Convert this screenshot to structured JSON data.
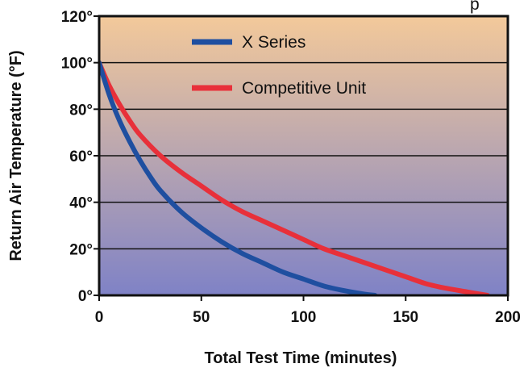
{
  "chart_data": {
    "type": "line",
    "title_fragment": "p",
    "xlabel": "Total Test Time (minutes)",
    "ylabel": "Return Air Temperature (°F)",
    "xlim": [
      0,
      200
    ],
    "ylim": [
      0,
      120
    ],
    "x_ticks": [
      0,
      50,
      100,
      150,
      200
    ],
    "x_tick_labels": [
      "0",
      "50",
      "100",
      "150",
      "200"
    ],
    "y_ticks": [
      0,
      20,
      40,
      60,
      80,
      100,
      120
    ],
    "y_tick_labels": [
      "0°",
      "20°",
      "40°",
      "60°",
      "80°",
      "100°",
      "120°"
    ],
    "grid": "horizontal",
    "legend_position": "top-center",
    "series": [
      {
        "name": "X Series",
        "color": "#1f4fa0",
        "x": [
          0,
          5,
          10,
          15,
          20,
          25,
          30,
          40,
          50,
          60,
          70,
          80,
          90,
          100,
          110,
          120,
          130,
          135
        ],
        "y": [
          100,
          86,
          75,
          66,
          58,
          51,
          45,
          36,
          29,
          23,
          18,
          14,
          10,
          7,
          4,
          2,
          0.5,
          0
        ]
      },
      {
        "name": "Competitive Unit",
        "color": "#e8303a",
        "x": [
          0,
          5,
          10,
          15,
          20,
          30,
          40,
          50,
          60,
          70,
          80,
          90,
          100,
          110,
          120,
          130,
          140,
          150,
          160,
          170,
          180,
          190
        ],
        "y": [
          100,
          90,
          82,
          75,
          69,
          60,
          53,
          47,
          41,
          36,
          32,
          28,
          24,
          20,
          17,
          14,
          11,
          8,
          5,
          3,
          1.5,
          0
        ]
      }
    ]
  },
  "colors": {
    "plot_top": "#f3c99a",
    "plot_bottom": "#7f82c6",
    "grid": "#111111",
    "frame": "#111111"
  }
}
